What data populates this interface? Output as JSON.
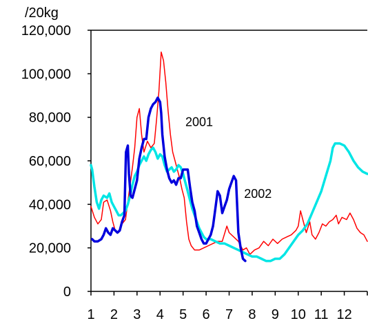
{
  "chart_data": {
    "type": "line",
    "unit_label": "/20kg",
    "x_ticks": [
      "1",
      "2",
      "3",
      "4",
      "5",
      "6",
      "7",
      "8",
      "9",
      "10",
      "11",
      "12"
    ],
    "y_ticks": [
      "0",
      "20,000",
      "40,000",
      "60,000",
      "80,000",
      "100,000",
      "120,000"
    ],
    "xlim": [
      1,
      13
    ],
    "ylim": [
      0,
      120000
    ],
    "annotations": [
      {
        "text": "2001",
        "x": 5.1,
        "y": 76000
      },
      {
        "text": "2002",
        "x": 7.65,
        "y": 43000
      }
    ],
    "series": [
      {
        "color": "#ff0000",
        "values": [
          [
            1.0,
            39000
          ],
          [
            1.15,
            34000
          ],
          [
            1.3,
            31000
          ],
          [
            1.45,
            33000
          ],
          [
            1.55,
            41000
          ],
          [
            1.7,
            42000
          ],
          [
            1.85,
            37000
          ],
          [
            1.95,
            32000
          ],
          [
            2.05,
            28000
          ],
          [
            2.2,
            27000
          ],
          [
            2.35,
            31000
          ],
          [
            2.5,
            33000
          ],
          [
            2.65,
            45000
          ],
          [
            2.8,
            57000
          ],
          [
            2.9,
            66000
          ],
          [
            3.0,
            80000
          ],
          [
            3.1,
            84000
          ],
          [
            3.2,
            72000
          ],
          [
            3.3,
            64000
          ],
          [
            3.45,
            69000
          ],
          [
            3.6,
            66000
          ],
          [
            3.75,
            68000
          ],
          [
            3.85,
            79000
          ],
          [
            3.95,
            92000
          ],
          [
            4.05,
            110000
          ],
          [
            4.15,
            106000
          ],
          [
            4.25,
            96000
          ],
          [
            4.35,
            83000
          ],
          [
            4.45,
            72000
          ],
          [
            4.55,
            64000
          ],
          [
            4.65,
            60000
          ],
          [
            4.75,
            56000
          ],
          [
            4.85,
            52000
          ],
          [
            4.95,
            47000
          ],
          [
            5.05,
            43000
          ],
          [
            5.15,
            32000
          ],
          [
            5.25,
            24000
          ],
          [
            5.35,
            21000
          ],
          [
            5.5,
            19000
          ],
          [
            5.7,
            19000
          ],
          [
            5.9,
            20000
          ],
          [
            6.1,
            21000
          ],
          [
            6.3,
            22000
          ],
          [
            6.5,
            23000
          ],
          [
            6.7,
            23000
          ],
          [
            6.9,
            30000
          ],
          [
            7.0,
            27000
          ],
          [
            7.2,
            25000
          ],
          [
            7.4,
            23000
          ],
          [
            7.6,
            19000
          ],
          [
            7.75,
            20000
          ],
          [
            7.9,
            17000
          ],
          [
            8.1,
            19000
          ],
          [
            8.3,
            20000
          ],
          [
            8.5,
            23000
          ],
          [
            8.7,
            21000
          ],
          [
            8.9,
            24000
          ],
          [
            9.1,
            22000
          ],
          [
            9.3,
            24000
          ],
          [
            9.5,
            25000
          ],
          [
            9.7,
            26000
          ],
          [
            9.9,
            28000
          ],
          [
            10.0,
            30000
          ],
          [
            10.1,
            37000
          ],
          [
            10.2,
            33000
          ],
          [
            10.35,
            27000
          ],
          [
            10.5,
            32000
          ],
          [
            10.6,
            26000
          ],
          [
            10.75,
            24000
          ],
          [
            10.9,
            27000
          ],
          [
            11.05,
            31000
          ],
          [
            11.2,
            30000
          ],
          [
            11.35,
            32000
          ],
          [
            11.5,
            33000
          ],
          [
            11.65,
            35000
          ],
          [
            11.75,
            31000
          ],
          [
            11.9,
            34000
          ],
          [
            12.1,
            33000
          ],
          [
            12.25,
            36000
          ],
          [
            12.4,
            33000
          ],
          [
            12.55,
            29000
          ],
          [
            12.7,
            27000
          ],
          [
            12.85,
            26000
          ],
          [
            13.0,
            23000
          ]
        ]
      },
      {
        "color": "#00e5e5",
        "values": [
          [
            1.0,
            58000
          ],
          [
            1.05,
            56000
          ],
          [
            1.15,
            48000
          ],
          [
            1.25,
            41000
          ],
          [
            1.35,
            38000
          ],
          [
            1.45,
            42000
          ],
          [
            1.55,
            44000
          ],
          [
            1.7,
            43000
          ],
          [
            1.8,
            45000
          ],
          [
            1.9,
            41000
          ],
          [
            2.0,
            39000
          ],
          [
            2.1,
            37000
          ],
          [
            2.2,
            35000
          ],
          [
            2.3,
            35000
          ],
          [
            2.4,
            36000
          ],
          [
            2.5,
            37000
          ],
          [
            2.6,
            40000
          ],
          [
            2.7,
            44000
          ],
          [
            2.8,
            49000
          ],
          [
            2.9,
            53000
          ],
          [
            3.0,
            55000
          ],
          [
            3.1,
            58000
          ],
          [
            3.2,
            60000
          ],
          [
            3.3,
            62000
          ],
          [
            3.4,
            60000
          ],
          [
            3.5,
            63000
          ],
          [
            3.6,
            65000
          ],
          [
            3.7,
            66000
          ],
          [
            3.8,
            64000
          ],
          [
            3.9,
            61000
          ],
          [
            4.0,
            63000
          ],
          [
            4.1,
            62000
          ],
          [
            4.2,
            58000
          ],
          [
            4.3,
            55000
          ],
          [
            4.4,
            56000
          ],
          [
            4.5,
            57000
          ],
          [
            4.6,
            55000
          ],
          [
            4.7,
            56000
          ],
          [
            4.8,
            58000
          ],
          [
            4.9,
            57000
          ],
          [
            5.0,
            54000
          ],
          [
            5.1,
            50000
          ],
          [
            5.2,
            46000
          ],
          [
            5.3,
            42000
          ],
          [
            5.4,
            38000
          ],
          [
            5.5,
            35000
          ],
          [
            5.6,
            32000
          ],
          [
            5.7,
            29000
          ],
          [
            5.8,
            27000
          ],
          [
            5.9,
            25000
          ],
          [
            6.0,
            24000
          ],
          [
            6.2,
            24000
          ],
          [
            6.4,
            23000
          ],
          [
            6.6,
            22000
          ],
          [
            6.8,
            22000
          ],
          [
            7.0,
            21000
          ],
          [
            7.2,
            20000
          ],
          [
            7.4,
            19000
          ],
          [
            7.6,
            18000
          ],
          [
            7.8,
            17000
          ],
          [
            8.0,
            16000
          ],
          [
            8.2,
            16000
          ],
          [
            8.4,
            15000
          ],
          [
            8.6,
            14000
          ],
          [
            8.8,
            14000
          ],
          [
            9.0,
            15000
          ],
          [
            9.2,
            15000
          ],
          [
            9.4,
            17000
          ],
          [
            9.6,
            20000
          ],
          [
            9.8,
            23000
          ],
          [
            10.0,
            26000
          ],
          [
            10.2,
            28000
          ],
          [
            10.4,
            31000
          ],
          [
            10.6,
            36000
          ],
          [
            10.8,
            41000
          ],
          [
            11.0,
            46000
          ],
          [
            11.2,
            53000
          ],
          [
            11.4,
            60000
          ],
          [
            11.5,
            66000
          ],
          [
            11.6,
            68000
          ],
          [
            11.8,
            68000
          ],
          [
            12.0,
            67000
          ],
          [
            12.2,
            64000
          ],
          [
            12.4,
            60000
          ],
          [
            12.6,
            57000
          ],
          [
            12.8,
            55000
          ],
          [
            13.0,
            54000
          ]
        ]
      },
      {
        "color": "#0000dd",
        "values": [
          [
            1.05,
            24000
          ],
          [
            1.15,
            23000
          ],
          [
            1.3,
            23000
          ],
          [
            1.45,
            24000
          ],
          [
            1.55,
            26000
          ],
          [
            1.65,
            29000
          ],
          [
            1.75,
            27000
          ],
          [
            1.85,
            26000
          ],
          [
            1.95,
            29000
          ],
          [
            2.05,
            28000
          ],
          [
            2.15,
            27000
          ],
          [
            2.25,
            28000
          ],
          [
            2.35,
            32000
          ],
          [
            2.45,
            35000
          ],
          [
            2.52,
            64000
          ],
          [
            2.6,
            67000
          ],
          [
            2.65,
            54000
          ],
          [
            2.72,
            44000
          ],
          [
            2.8,
            43000
          ],
          [
            2.9,
            47000
          ],
          [
            3.0,
            51000
          ],
          [
            3.1,
            61000
          ],
          [
            3.2,
            66000
          ],
          [
            3.3,
            70000
          ],
          [
            3.4,
            70000
          ],
          [
            3.5,
            80000
          ],
          [
            3.6,
            84000
          ],
          [
            3.7,
            86000
          ],
          [
            3.8,
            87000
          ],
          [
            3.9,
            89000
          ],
          [
            4.0,
            87000
          ],
          [
            4.05,
            82000
          ],
          [
            4.1,
            72000
          ],
          [
            4.2,
            62000
          ],
          [
            4.3,
            56000
          ],
          [
            4.4,
            52000
          ],
          [
            4.5,
            50000
          ],
          [
            4.6,
            51000
          ],
          [
            4.7,
            49000
          ],
          [
            4.8,
            52000
          ],
          [
            4.9,
            52000
          ],
          [
            5.0,
            56000
          ],
          [
            5.1,
            56000
          ],
          [
            5.2,
            56000
          ],
          [
            5.3,
            48000
          ],
          [
            5.4,
            41000
          ],
          [
            5.5,
            37000
          ],
          [
            5.6,
            30000
          ],
          [
            5.7,
            27000
          ],
          [
            5.8,
            24000
          ],
          [
            5.9,
            22000
          ],
          [
            6.0,
            22000
          ],
          [
            6.1,
            24000
          ],
          [
            6.2,
            26000
          ],
          [
            6.3,
            30000
          ],
          [
            6.4,
            38000
          ],
          [
            6.5,
            46000
          ],
          [
            6.6,
            44000
          ],
          [
            6.7,
            36000
          ],
          [
            6.8,
            39000
          ],
          [
            6.9,
            42000
          ],
          [
            7.0,
            47000
          ],
          [
            7.1,
            50000
          ],
          [
            7.2,
            53000
          ],
          [
            7.3,
            51000
          ],
          [
            7.4,
            27000
          ],
          [
            7.5,
            20000
          ],
          [
            7.6,
            15000
          ],
          [
            7.7,
            14000
          ]
        ]
      }
    ],
    "legend": "none",
    "grid": false
  }
}
